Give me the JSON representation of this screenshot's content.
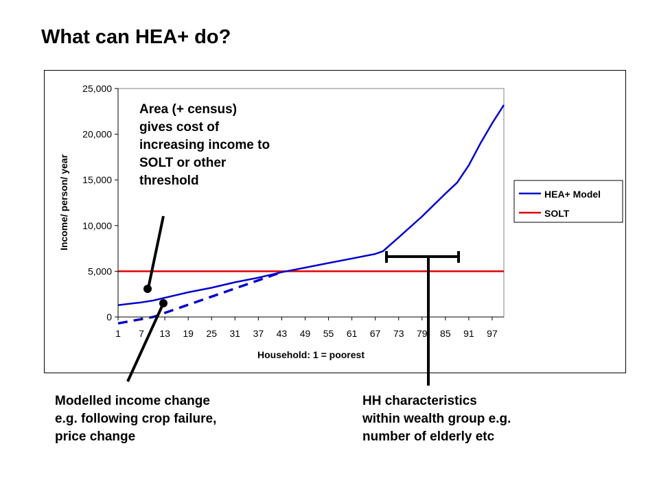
{
  "slide": {
    "title": "What can HEA+ do?"
  },
  "annotations": {
    "area_census": [
      "Area (+ census)",
      "gives cost of",
      "increasing income to",
      "SOLT or other",
      "threshold"
    ],
    "modelled_change": [
      "Modelled income change",
      "e.g. following crop failure,",
      "price change"
    ],
    "hh_characteristics": [
      "HH characteristics",
      "within wealth group e.g.",
      "number of elderly etc"
    ]
  },
  "colors": {
    "model": "#0000cc",
    "solt": "#dd0000",
    "axis": "#000000",
    "plot_border": "#808080"
  },
  "chart_data": {
    "type": "line",
    "xlabel": "Household: 1 = poorest",
    "ylabel": "Income/ person/ year",
    "xlim": [
      1,
      100
    ],
    "ylim": [
      0,
      25000
    ],
    "x_ticks": [
      "1",
      "7",
      "13",
      "19",
      "25",
      "31",
      "37",
      "43",
      "49",
      "55",
      "61",
      "67",
      "73",
      "79",
      "85",
      "91",
      "97"
    ],
    "y_ticks": [
      "0",
      "5,000",
      "10,000",
      "15,000",
      "20,000",
      "25,000"
    ],
    "legend_position": "right",
    "series": [
      {
        "name": "HEA+ Model",
        "style": "solid",
        "x": [
          1,
          5,
          7,
          10,
          13,
          19,
          25,
          31,
          37,
          43,
          49,
          55,
          61,
          67,
          69,
          73,
          79,
          85,
          88,
          91,
          94,
          97,
          100
        ],
        "y": [
          1300,
          1500,
          1600,
          1800,
          2100,
          2700,
          3200,
          3800,
          4300,
          4900,
          5400,
          5900,
          6400,
          6900,
          7200,
          8700,
          11000,
          13500,
          14700,
          16600,
          19000,
          21200,
          23200
        ]
      },
      {
        "name": "SOLT",
        "style": "solid",
        "x": [
          1,
          100
        ],
        "y": [
          5000,
          5000
        ]
      },
      {
        "name": "",
        "style": "dashed",
        "x": [
          1,
          10,
          43
        ],
        "y": [
          -700,
          0,
          4900
        ]
      }
    ]
  }
}
